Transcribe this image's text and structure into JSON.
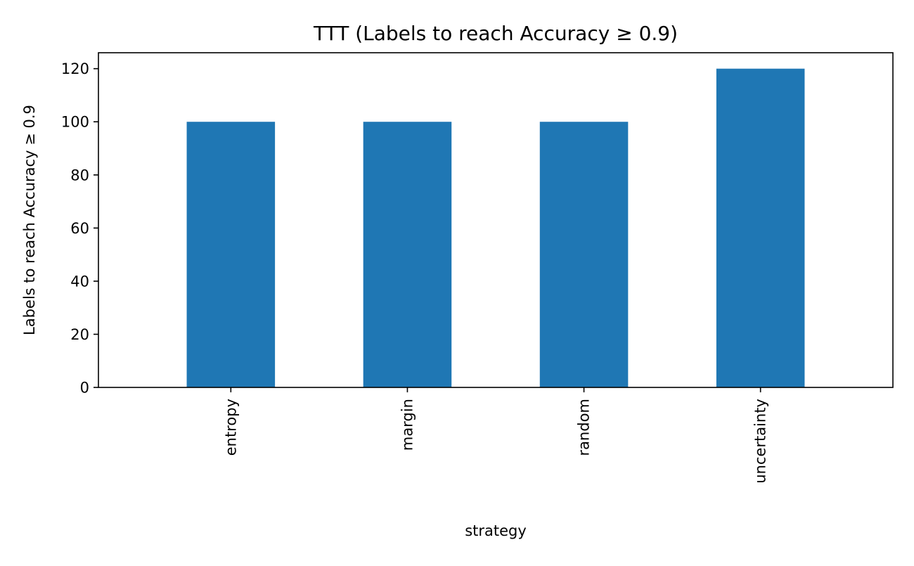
{
  "chart_data": {
    "type": "bar",
    "title": "TTT (Labels to reach Accuracy ≥ 0.9)",
    "xlabel": "strategy",
    "ylabel": "Labels to reach Accuracy ≥ 0.9",
    "categories": [
      "entropy",
      "margin",
      "random",
      "uncertainty"
    ],
    "values": [
      100,
      100,
      100,
      120
    ],
    "ylim": [
      0,
      126
    ],
    "yticks": [
      0,
      20,
      40,
      60,
      80,
      100,
      120
    ],
    "grid": false,
    "legend": "none",
    "bar_color": "#1f77b4"
  }
}
